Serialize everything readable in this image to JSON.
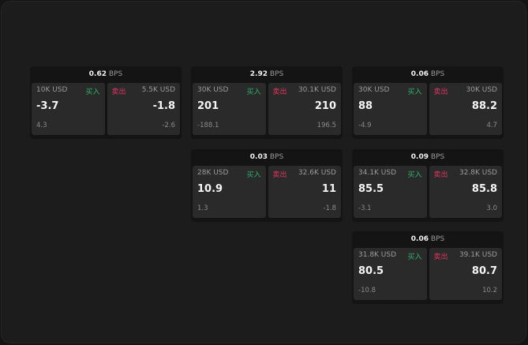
{
  "unit": "BPS",
  "buy_label": "买入",
  "sell_label": "卖出",
  "colors": {
    "buy": "#2fb36a",
    "sell": "#e0345f"
  },
  "quotes": [
    {
      "spread": "0.62",
      "bid_size": "10K USD",
      "bid": "-3.7",
      "bid_change": "4.3",
      "ask_size": "5.5K USD",
      "ask": "-1.8",
      "ask_change": "-2.6"
    },
    {
      "spread": "2.92",
      "bid_size": "30K USD",
      "bid": "201",
      "bid_change": "-188.1",
      "ask_size": "30.1K USD",
      "ask": "210",
      "ask_change": "196.5"
    },
    {
      "spread": "0.06",
      "bid_size": "30K USD",
      "bid": "88",
      "bid_change": "-4.9",
      "ask_size": "30K USD",
      "ask": "88.2",
      "ask_change": "4.7"
    },
    {
      "spread": "0.03",
      "bid_size": "28K USD",
      "bid": "10.9",
      "bid_change": "1.3",
      "ask_size": "32.6K USD",
      "ask": "11",
      "ask_change": "-1.8"
    },
    {
      "spread": "0.09",
      "bid_size": "34.1K USD",
      "bid": "85.5",
      "bid_change": "-3.1",
      "ask_size": "32.8K USD",
      "ask": "85.8",
      "ask_change": "3.0"
    },
    {
      "spread": "0.06",
      "bid_size": "31.8K USD",
      "bid": "80.5",
      "bid_change": "-10.8",
      "ask_size": "39.1K USD",
      "ask": "80.7",
      "ask_change": "10.2"
    }
  ]
}
